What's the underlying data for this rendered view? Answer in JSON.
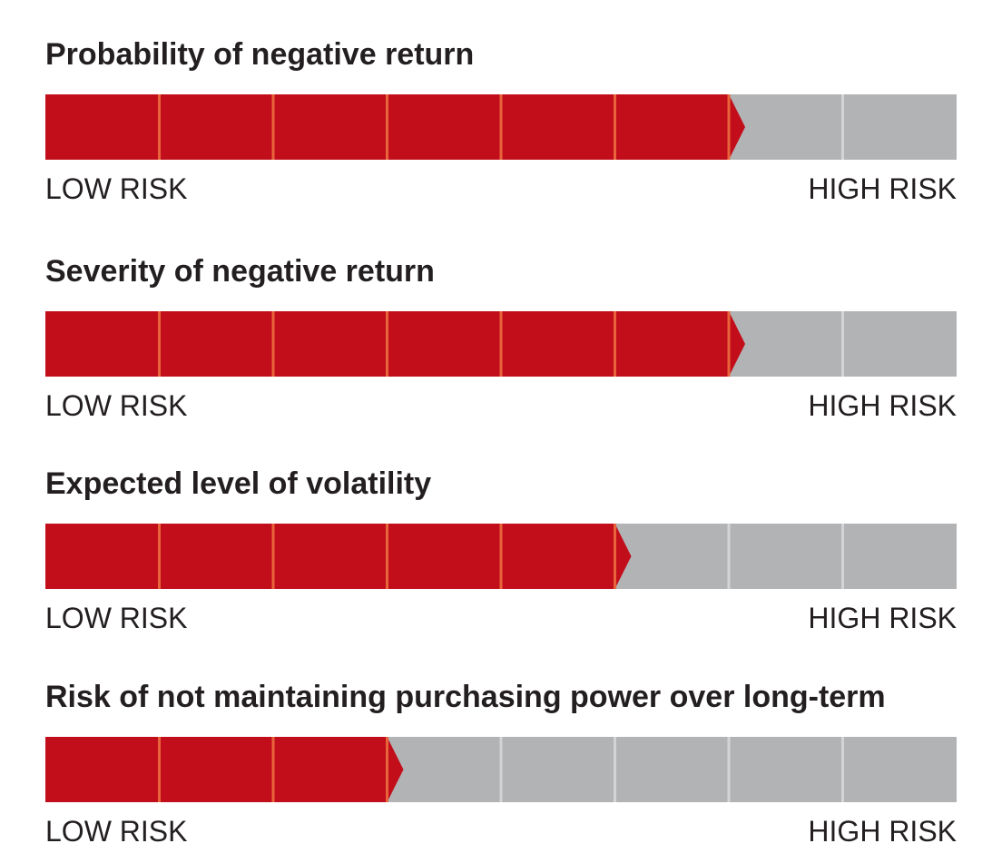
{
  "colors": {
    "filled": "#c20e1a",
    "empty": "#b1b3b5",
    "divider_filled": "#e8643a",
    "divider_empty": "#d3d4d6"
  },
  "chart_data": [
    {
      "type": "bar",
      "title": "Probability of negative return",
      "segments_total": 8,
      "level": 6,
      "low_label": "LOW RISK",
      "high_label": "HIGH RISK"
    },
    {
      "type": "bar",
      "title": "Severity of negative return",
      "segments_total": 8,
      "level": 6,
      "low_label": "LOW RISK",
      "high_label": "HIGH RISK"
    },
    {
      "type": "bar",
      "title": "Expected level of volatility",
      "segments_total": 8,
      "level": 5,
      "low_label": "LOW RISK",
      "high_label": "HIGH RISK"
    },
    {
      "type": "bar",
      "title": "Risk of not maintaining purchasing power over long-term",
      "segments_total": 8,
      "level": 3,
      "low_label": "LOW RISK",
      "high_label": "HIGH RISK"
    }
  ]
}
